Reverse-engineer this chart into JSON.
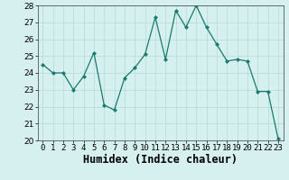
{
  "x": [
    0,
    1,
    2,
    3,
    4,
    5,
    6,
    7,
    8,
    9,
    10,
    11,
    12,
    13,
    14,
    15,
    16,
    17,
    18,
    19,
    20,
    21,
    22,
    23
  ],
  "y": [
    24.5,
    24.0,
    24.0,
    23.0,
    23.8,
    25.2,
    22.1,
    21.8,
    23.7,
    24.3,
    25.1,
    27.3,
    24.8,
    27.7,
    26.7,
    28.0,
    26.7,
    25.7,
    24.7,
    24.8,
    24.7,
    22.9,
    22.9,
    20.1
  ],
  "line_color": "#1a7a6e",
  "marker_color": "#1a7a6e",
  "bg_color": "#d5f0ee",
  "grid_color": "#b8ddd9",
  "xlabel": "Humidex (Indice chaleur)",
  "ylim": [
    20,
    28
  ],
  "xlim": [
    -0.5,
    23.5
  ],
  "yticks": [
    20,
    21,
    22,
    23,
    24,
    25,
    26,
    27,
    28
  ],
  "xticks": [
    0,
    1,
    2,
    3,
    4,
    5,
    6,
    7,
    8,
    9,
    10,
    11,
    12,
    13,
    14,
    15,
    16,
    17,
    18,
    19,
    20,
    21,
    22,
    23
  ],
  "tick_fontsize": 6.5,
  "xlabel_fontsize": 8.5
}
